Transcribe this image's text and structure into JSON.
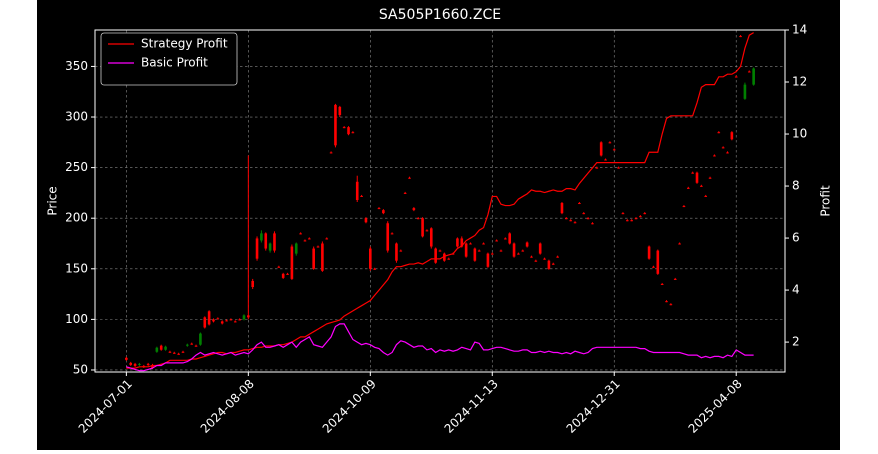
{
  "chart_data": {
    "type": "candlestick",
    "title": "SA505P1660.ZCE",
    "ylabel": "Price",
    "y2label": "Profit",
    "categories": [
      "2024-07-01",
      null,
      null,
      null,
      null,
      null,
      null,
      null,
      null,
      null,
      null,
      null,
      null,
      null,
      null,
      null,
      null,
      null,
      null,
      null,
      null,
      null,
      null,
      null,
      null,
      null,
      null,
      null,
      "2024-08-08",
      null,
      null,
      null,
      null,
      null,
      null,
      null,
      null,
      null,
      null,
      null,
      null,
      null,
      null,
      null,
      null,
      null,
      null,
      null,
      null,
      null,
      null,
      null,
      null,
      null,
      null,
      null,
      "2024-10-09",
      null,
      null,
      null,
      null,
      null,
      null,
      null,
      null,
      null,
      null,
      null,
      null,
      null,
      null,
      null,
      null,
      null,
      null,
      null,
      null,
      null,
      null,
      null,
      null,
      null,
      null,
      null,
      "2024-11-13",
      null,
      null,
      null,
      null,
      null,
      null,
      null,
      null,
      null,
      null,
      null,
      null,
      null,
      null,
      null,
      null,
      null,
      null,
      null,
      null,
      null,
      null,
      null,
      null,
      null,
      null,
      null,
      "2024-12-31",
      null,
      null,
      null,
      null,
      null,
      null,
      null,
      null,
      null,
      null,
      null,
      null,
      null,
      null,
      null,
      null,
      null,
      null,
      null,
      null,
      null,
      null,
      null,
      null,
      null,
      null,
      null,
      "2025-04-08",
      null,
      null,
      null,
      null
    ],
    "open": [
      62,
      57,
      56,
      55,
      54,
      56,
      55,
      68,
      74,
      70,
      68,
      67,
      66,
      68,
      74,
      76,
      74,
      75,
      102,
      108,
      100,
      101,
      98,
      99,
      100,
      98,
      100,
      100,
      104,
      138,
      180,
      178,
      185,
      168,
      185,
      152,
      145,
      145,
      172,
      165,
      185,
      178,
      180,
      170,
      172,
      175,
      180,
      265,
      312,
      310,
      290,
      290,
      285,
      236,
      222,
      200,
      170,
      150,
      210,
      208,
      195,
      185,
      175,
      168,
      225,
      240,
      210,
      200,
      200,
      188,
      190,
      170,
      168,
      165,
      160,
      165,
      180,
      180,
      175,
      175,
      170,
      168,
      175,
      165,
      165,
      178,
      168,
      180,
      185,
      175,
      165,
      168,
      176,
      162,
      158,
      175,
      160,
      158,
      155,
      162,
      215,
      200,
      198,
      196,
      215,
      205,
      200,
      195,
      250,
      275,
      258,
      275,
      268,
      250,
      205,
      198,
      198,
      200,
      202,
      205,
      172,
      152,
      168,
      135,
      118,
      115,
      140,
      175,
      212,
      230,
      245,
      245,
      232,
      222,
      240,
      262,
      285,
      270,
      265,
      285,
      340,
      380,
      318,
      345,
      332
    ],
    "high": [
      63,
      58,
      57,
      57,
      55,
      57,
      56,
      73,
      75,
      74,
      69,
      68,
      67,
      69,
      76,
      77,
      75,
      87,
      103,
      109,
      101,
      102,
      99,
      100,
      101,
      99,
      101,
      105,
      262,
      140,
      182,
      188,
      186,
      176,
      187,
      153,
      146,
      146,
      174,
      176,
      186,
      179,
      181,
      172,
      173,
      177,
      181,
      266,
      313,
      311,
      291,
      291,
      286,
      242,
      223,
      201,
      172,
      151,
      211,
      209,
      197,
      186,
      176,
      169,
      226,
      241,
      211,
      201,
      201,
      189,
      191,
      171,
      169,
      166,
      161,
      166,
      181,
      182,
      176,
      176,
      171,
      169,
      176,
      166,
      166,
      179,
      169,
      181,
      186,
      176,
      166,
      169,
      177,
      163,
      159,
      176,
      161,
      159,
      156,
      163,
      216,
      201,
      199,
      197,
      216,
      206,
      201,
      196,
      251,
      276,
      259,
      276,
      269,
      251,
      206,
      199,
      199,
      201,
      203,
      206,
      173,
      153,
      169,
      136,
      119,
      116,
      141,
      176,
      213,
      231,
      246,
      246,
      233,
      223,
      241,
      263,
      286,
      271,
      266,
      286,
      341,
      381,
      334,
      346,
      349
    ],
    "low": [
      59,
      54,
      53,
      54,
      52,
      54,
      51,
      67,
      69,
      69,
      67,
      66,
      65,
      67,
      73,
      75,
      73,
      74,
      91,
      94,
      97,
      100,
      95,
      98,
      99,
      97,
      99,
      99,
      100,
      130,
      158,
      176,
      168,
      166,
      166,
      151,
      140,
      144,
      139,
      163,
      184,
      177,
      179,
      149,
      171,
      147,
      179,
      264,
      270,
      300,
      289,
      282,
      284,
      216,
      221,
      195,
      148,
      149,
      209,
      204,
      166,
      184,
      156,
      167,
      224,
      239,
      207,
      199,
      181,
      187,
      170,
      155,
      167,
      157,
      159,
      164,
      171,
      171,
      161,
      174,
      157,
      167,
      174,
      151,
      164,
      177,
      167,
      179,
      174,
      161,
      164,
      167,
      171,
      161,
      157,
      164,
      159,
      149,
      154,
      161,
      204,
      199,
      197,
      195,
      214,
      204,
      199,
      194,
      249,
      261,
      257,
      274,
      267,
      249,
      204,
      197,
      197,
      199,
      201,
      204,
      159,
      151,
      144,
      134,
      117,
      114,
      139,
      174,
      211,
      229,
      244,
      234,
      231,
      221,
      239,
      261,
      284,
      269,
      264,
      277,
      339,
      379,
      317,
      344,
      331
    ],
    "close": [
      60,
      55,
      54,
      56,
      53,
      55,
      52,
      72,
      70,
      73,
      68,
      67,
      66,
      68,
      75,
      76,
      74,
      86,
      92,
      95,
      98,
      101,
      96,
      99,
      100,
      98,
      100,
      104,
      102,
      132,
      160,
      185,
      170,
      175,
      168,
      152,
      141,
      145,
      140,
      175,
      185,
      178,
      180,
      150,
      172,
      148,
      180,
      265,
      272,
      302,
      290,
      283,
      285,
      218,
      222,
      196,
      150,
      150,
      210,
      205,
      168,
      185,
      158,
      168,
      225,
      240,
      208,
      200,
      182,
      188,
      172,
      156,
      168,
      158,
      160,
      165,
      172,
      172,
      162,
      175,
      158,
      168,
      175,
      152,
      165,
      178,
      168,
      180,
      175,
      162,
      165,
      168,
      172,
      162,
      158,
      165,
      160,
      150,
      155,
      162,
      205,
      200,
      198,
      196,
      215,
      205,
      200,
      195,
      250,
      262,
      258,
      275,
      268,
      250,
      205,
      198,
      198,
      200,
      202,
      205,
      160,
      152,
      145,
      135,
      118,
      115,
      140,
      175,
      212,
      230,
      245,
      235,
      232,
      222,
      240,
      262,
      285,
      270,
      265,
      278,
      340,
      380,
      332,
      345,
      348
    ],
    "up_color": "#008000",
    "down_color": "#ff0000",
    "series": [
      {
        "name": "Strategy Profit",
        "color": "#ff0000",
        "axis": "y2",
        "values": [
          1.0,
          1.0,
          1.0,
          1.05,
          1.05,
          1.05,
          1.1,
          1.1,
          1.15,
          1.2,
          1.3,
          1.3,
          1.3,
          1.3,
          1.3,
          1.35,
          1.35,
          1.4,
          1.45,
          1.5,
          1.55,
          1.6,
          1.6,
          1.55,
          1.6,
          1.6,
          1.65,
          1.7,
          1.7,
          1.75,
          1.8,
          1.8,
          1.85,
          1.85,
          1.85,
          1.9,
          1.9,
          1.95,
          2.0,
          2.1,
          2.2,
          2.2,
          2.3,
          2.4,
          2.5,
          2.6,
          2.7,
          2.75,
          2.8,
          2.85,
          3.0,
          3.1,
          3.2,
          3.3,
          3.4,
          3.5,
          3.6,
          3.8,
          4.0,
          4.2,
          4.4,
          4.7,
          4.9,
          4.9,
          4.95,
          5.0,
          5.0,
          5.05,
          5.0,
          5.1,
          5.2,
          5.2,
          5.2,
          5.3,
          5.35,
          5.4,
          5.6,
          5.7,
          5.9,
          6.0,
          6.1,
          6.3,
          6.4,
          6.9,
          7.6,
          7.6,
          7.3,
          7.25,
          7.25,
          7.3,
          7.5,
          7.6,
          7.7,
          7.85,
          7.8,
          7.8,
          7.75,
          7.8,
          7.85,
          7.8,
          7.8,
          7.9,
          7.9,
          7.85,
          8.1,
          8.3,
          8.5,
          8.7,
          8.9,
          8.9,
          8.9,
          8.9,
          8.9,
          8.9,
          8.9,
          8.9,
          8.9,
          8.9,
          8.9,
          8.9,
          9.3,
          9.3,
          9.3,
          10.0,
          10.6,
          10.7,
          10.7,
          10.7,
          10.7,
          10.7,
          10.7,
          11.2,
          11.8,
          11.9,
          11.9,
          11.9,
          12.2,
          12.2,
          12.3,
          12.3,
          12.4,
          12.6,
          13.3,
          13.8,
          13.9
        ]
      },
      {
        "name": "Basic Profit",
        "color": "#ff00ff",
        "axis": "y2",
        "values": [
          1.05,
          1.0,
          0.95,
          0.9,
          0.9,
          0.95,
          1.0,
          1.1,
          1.1,
          1.2,
          1.2,
          1.2,
          1.2,
          1.2,
          1.25,
          1.35,
          1.5,
          1.6,
          1.5,
          1.55,
          1.6,
          1.55,
          1.5,
          1.55,
          1.6,
          1.5,
          1.55,
          1.6,
          1.55,
          1.7,
          1.9,
          2.0,
          1.8,
          1.8,
          1.85,
          1.9,
          1.8,
          1.9,
          2.0,
          1.8,
          2.0,
          2.1,
          2.2,
          1.9,
          1.85,
          1.8,
          2.0,
          2.2,
          2.6,
          2.7,
          2.7,
          2.4,
          2.1,
          2.0,
          1.9,
          1.95,
          1.9,
          1.8,
          1.75,
          1.6,
          1.5,
          1.6,
          1.9,
          2.05,
          2.0,
          1.9,
          1.8,
          1.85,
          1.85,
          1.7,
          1.75,
          1.6,
          1.7,
          1.65,
          1.7,
          1.65,
          1.7,
          1.8,
          1.75,
          1.7,
          2.0,
          1.95,
          1.7,
          1.7,
          1.75,
          1.8,
          1.8,
          1.75,
          1.7,
          1.65,
          1.65,
          1.7,
          1.7,
          1.6,
          1.6,
          1.65,
          1.6,
          1.65,
          1.6,
          1.6,
          1.55,
          1.6,
          1.55,
          1.65,
          1.6,
          1.55,
          1.6,
          1.75,
          1.8,
          1.8,
          1.8,
          1.8,
          1.8,
          1.8,
          1.8,
          1.8,
          1.8,
          1.8,
          1.75,
          1.75,
          1.65,
          1.6,
          1.6,
          1.6,
          1.6,
          1.6,
          1.6,
          1.6,
          1.55,
          1.5,
          1.5,
          1.5,
          1.4,
          1.45,
          1.4,
          1.45,
          1.45,
          1.4,
          1.5,
          1.45,
          1.7,
          1.6,
          1.5,
          1.5,
          1.5
        ]
      }
    ],
    "ylim": [
      48,
      386
    ],
    "yticks": [
      50,
      100,
      150,
      200,
      250,
      300,
      350
    ],
    "y2lim": [
      0.85,
      14
    ],
    "y2ticks": [
      2,
      4,
      6,
      8,
      10,
      12,
      14
    ],
    "grid": true,
    "legend": "upper-left"
  }
}
